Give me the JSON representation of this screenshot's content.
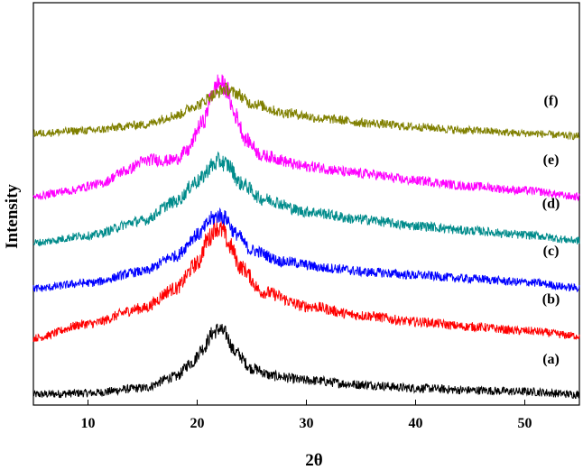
{
  "chart_data": {
    "type": "line",
    "title": "",
    "xlabel": "2θ",
    "ylabel": "Intensity",
    "xlim": [
      5,
      55
    ],
    "xticks": [
      10,
      20,
      30,
      40,
      50
    ],
    "yticks_visible": false,
    "grid": false,
    "legend": "inline labels at right end of each curve",
    "series": [
      {
        "name": "(a)",
        "color": "#000000",
        "offset": 0.0,
        "points": [
          [
            5,
            0.5
          ],
          [
            10,
            0.7
          ],
          [
            15,
            1.4
          ],
          [
            18,
            3.0
          ],
          [
            19.5,
            5.0
          ],
          [
            20.5,
            7.0
          ],
          [
            21.5,
            9.3
          ],
          [
            22,
            9.8
          ],
          [
            22.5,
            9.2
          ],
          [
            23.5,
            6.5
          ],
          [
            25,
            4.2
          ],
          [
            27,
            3.1
          ],
          [
            30,
            2.5
          ],
          [
            35,
            1.9
          ],
          [
            40,
            1.4
          ],
          [
            45,
            1.1
          ],
          [
            50,
            0.9
          ],
          [
            55,
            0.5
          ]
        ]
      },
      {
        "name": "(b)",
        "color": "#ff0000",
        "offset": 8.5,
        "points": [
          [
            5,
            0.0
          ],
          [
            10,
            2.0
          ],
          [
            15,
            4.2
          ],
          [
            18,
            7.0
          ],
          [
            20,
            10.5
          ],
          [
            21,
            14.0
          ],
          [
            21.7,
            15.8
          ],
          [
            22.3,
            15.2
          ],
          [
            23,
            13.0
          ],
          [
            24,
            10.0
          ],
          [
            26,
            6.5
          ],
          [
            30,
            4.5
          ],
          [
            35,
            3.2
          ],
          [
            40,
            2.3
          ],
          [
            45,
            1.6
          ],
          [
            50,
            1.0
          ],
          [
            55,
            0.3
          ]
        ]
      },
      {
        "name": "(c)",
        "color": "#0000ff",
        "offset": 15.5,
        "points": [
          [
            5,
            0.0
          ],
          [
            10,
            0.8
          ],
          [
            15,
            2.4
          ],
          [
            18,
            4.6
          ],
          [
            20,
            7.6
          ],
          [
            21.5,
            10.0
          ],
          [
            22,
            10.4
          ],
          [
            22.6,
            10.0
          ],
          [
            23.5,
            7.8
          ],
          [
            25,
            5.4
          ],
          [
            28,
            3.8
          ],
          [
            32,
            2.9
          ],
          [
            36,
            2.3
          ],
          [
            40,
            1.9
          ],
          [
            45,
            1.4
          ],
          [
            50,
            0.9
          ],
          [
            55,
            0.1
          ]
        ]
      },
      {
        "name": "(d)",
        "color": "#008b8b",
        "offset": 22.0,
        "points": [
          [
            5,
            0.0
          ],
          [
            10,
            1.0
          ],
          [
            15,
            3.1
          ],
          [
            18,
            5.8
          ],
          [
            20,
            8.7
          ],
          [
            21.5,
            11.0
          ],
          [
            22,
            11.6
          ],
          [
            22.8,
            11.0
          ],
          [
            24,
            8.4
          ],
          [
            26,
            6.2
          ],
          [
            30,
            4.4
          ],
          [
            35,
            3.3
          ],
          [
            40,
            2.4
          ],
          [
            45,
            1.7
          ],
          [
            50,
            1.1
          ],
          [
            55,
            0.3
          ]
        ]
      },
      {
        "name": "(e)",
        "color": "#ff00ff",
        "offset": 28.5,
        "points": [
          [
            5,
            0.0
          ],
          [
            8,
            0.8
          ],
          [
            11,
            1.8
          ],
          [
            13.5,
            3.7
          ],
          [
            15,
            5.0
          ],
          [
            16,
            5.3
          ],
          [
            17,
            5.1
          ],
          [
            18,
            5.3
          ],
          [
            19,
            6.4
          ],
          [
            20.5,
            10.5
          ],
          [
            21.5,
            15.0
          ],
          [
            22,
            16.2
          ],
          [
            22.6,
            15.5
          ],
          [
            23.5,
            11.5
          ],
          [
            24.5,
            8.0
          ],
          [
            26,
            5.8
          ],
          [
            30,
            4.3
          ],
          [
            35,
            3.3
          ],
          [
            40,
            2.3
          ],
          [
            45,
            1.5
          ],
          [
            50,
            0.9
          ],
          [
            55,
            0.0
          ]
        ]
      },
      {
        "name": "(f)",
        "color": "#808000",
        "offset": 37.5,
        "points": [
          [
            5,
            0.0
          ],
          [
            10,
            0.4
          ],
          [
            15,
            1.2
          ],
          [
            18,
            2.5
          ],
          [
            20,
            4.0
          ],
          [
            21.5,
            5.4
          ],
          [
            22.5,
            6.3
          ],
          [
            23.5,
            5.7
          ],
          [
            25,
            4.2
          ],
          [
            28,
            2.9
          ],
          [
            32,
            2.0
          ],
          [
            36,
            1.4
          ],
          [
            40,
            0.9
          ],
          [
            45,
            0.4
          ],
          [
            50,
            0.0
          ],
          [
            55,
            -0.4
          ]
        ]
      }
    ]
  }
}
